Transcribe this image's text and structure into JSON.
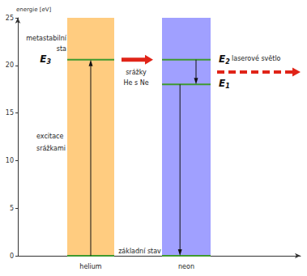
{
  "chart_data": {
    "type": "energy_level_diagram",
    "y_label": "energie [eV]",
    "ylim": [
      0,
      25
    ],
    "yticks": [
      0,
      5,
      10,
      15,
      20,
      25
    ],
    "grid": false,
    "columns": [
      {
        "name": "helium",
        "color": "#ffcc80",
        "levels": [
          {
            "energy": 0
          },
          {
            "energy": 20.6,
            "label": {
              "symbol": "E",
              "index": "3"
            }
          }
        ],
        "transitions": [
          {
            "from": 0,
            "to": 20.6
          }
        ]
      },
      {
        "name": "neon",
        "color": "#a0a0ff",
        "levels": [
          {
            "energy": 0
          },
          {
            "energy": 20.6,
            "label": {
              "symbol": "E",
              "index": "2"
            }
          },
          {
            "energy": 18,
            "label": {
              "symbol": "E",
              "index": "1"
            }
          }
        ],
        "transitions": [
          {
            "from": 20.6,
            "to": 18
          },
          {
            "from": 18,
            "to": 0
          }
        ]
      }
    ],
    "annotations": {
      "metastable": [
        "metastabilní",
        "sta"
      ],
      "excitation": [
        "excitace",
        "srážkami"
      ],
      "collision": [
        "srážky",
        "He s Ne"
      ],
      "laser": "laserové světlo",
      "ground": "základní stav"
    }
  }
}
